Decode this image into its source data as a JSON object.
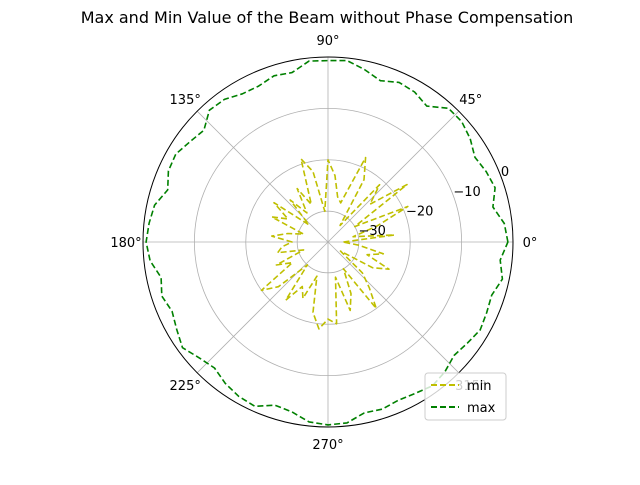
{
  "chart_data": {
    "type": "line",
    "subtype": "polar",
    "title": "Max and Min Value of the Beam without Phase Compensation",
    "theta_unit": "degrees",
    "angular_ticks": [
      "0°",
      "45°",
      "90°",
      "135°",
      "180°",
      "225°",
      "270°",
      "315°"
    ],
    "radial_ticks": [
      {
        "value": -30,
        "label": "−30"
      },
      {
        "value": -20,
        "label": "−20"
      },
      {
        "value": -10,
        "label": "−10"
      },
      {
        "value": 0,
        "label": "0"
      }
    ],
    "rlim": [
      -36,
      0
    ],
    "grid": true,
    "legend": {
      "placement": "lower-right",
      "entries": [
        "min",
        "max"
      ]
    },
    "series": [
      {
        "name": "min",
        "color": "#bfbf00",
        "linestyle": "dashed",
        "theta": [
          0,
          6,
          12,
          18,
          24,
          30,
          36,
          42,
          48,
          54,
          60,
          66,
          72,
          78,
          84,
          90,
          96,
          102,
          108,
          114,
          120,
          126,
          132,
          138,
          144,
          150,
          156,
          162,
          168,
          174,
          180,
          186,
          192,
          198,
          204,
          210,
          216,
          222,
          228,
          234,
          240,
          246,
          252,
          258,
          264,
          270,
          276,
          282,
          288,
          294,
          300,
          306,
          312,
          318,
          324,
          330,
          336,
          342,
          348,
          354
        ],
        "r": [
          -33,
          -23,
          -31,
          -26,
          -19,
          -30,
          -17,
          -25,
          -21,
          -32,
          -22,
          -18,
          -28,
          -27,
          -23,
          -20,
          -30,
          -22,
          -19,
          -28,
          -24,
          -29,
          -25,
          -31,
          -23,
          -27,
          -24,
          -31,
          -28,
          -25,
          -29,
          -27,
          -26,
          -31,
          -25,
          -28,
          -20,
          -23,
          -30,
          -22,
          -26,
          -24,
          -29,
          -22,
          -19,
          -21,
          -20,
          -29,
          -22,
          -25,
          -30,
          -20,
          -24,
          -27,
          -33,
          -26,
          -23,
          -28,
          -25,
          -30
        ]
      },
      {
        "name": "max",
        "color": "#008000",
        "linestyle": "dashed",
        "theta": [
          0,
          6,
          12,
          18,
          24,
          30,
          36,
          42,
          48,
          54,
          60,
          66,
          72,
          78,
          84,
          90,
          96,
          102,
          108,
          114,
          120,
          126,
          132,
          138,
          144,
          150,
          156,
          162,
          168,
          174,
          180,
          186,
          192,
          198,
          204,
          210,
          216,
          222,
          228,
          234,
          240,
          246,
          252,
          258,
          264,
          270,
          276,
          282,
          288,
          294,
          300,
          306,
          312,
          318,
          324,
          330,
          336,
          342,
          348,
          354
        ],
        "r": [
          -1.0,
          -1.5,
          -3.2,
          -1.8,
          -2.3,
          -3.0,
          -1.8,
          -1.0,
          -1.0,
          -3.3,
          -2.3,
          -2.0,
          -3.0,
          -1.7,
          -0.5,
          -0.7,
          -0.6,
          -2.3,
          -2.0,
          -2.8,
          -2.7,
          -1.7,
          -1.5,
          -3.5,
          -2.8,
          -1.8,
          -2.0,
          -3.2,
          -1.5,
          -1.0,
          -0.6,
          -1.2,
          -2.8,
          -2.0,
          -2.8,
          -2.0,
          -1.0,
          -2.3,
          -3.0,
          -2.0,
          -1.3,
          -1.0,
          -2.6,
          -2.2,
          -0.8,
          -0.4,
          -0.6,
          -2.0,
          -1.8,
          -2.3,
          -2.0,
          -1.4,
          -2.0,
          -3.0,
          -2.5,
          -1.8,
          -2.2,
          -2.5,
          -1.3,
          -2.3
        ]
      }
    ]
  }
}
